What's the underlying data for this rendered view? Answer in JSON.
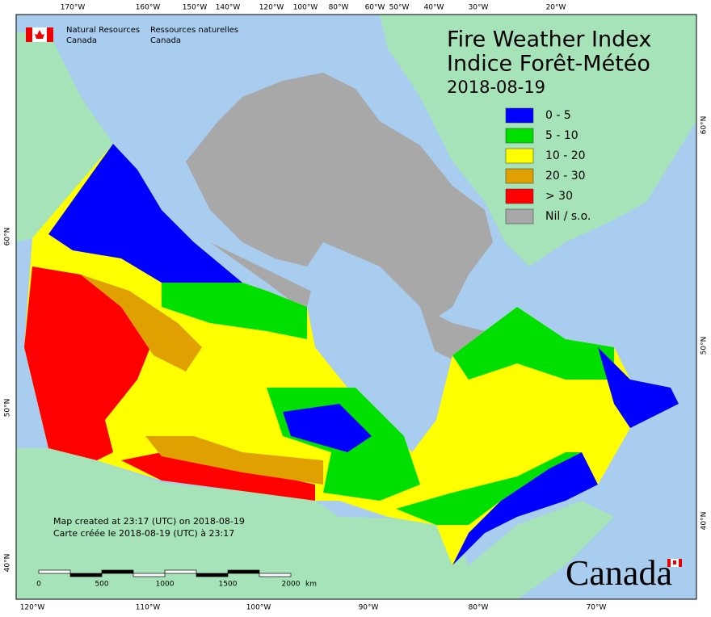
{
  "header": {
    "agency": {
      "english": [
        "Natural Resources",
        "Canada"
      ],
      "french": [
        "Ressources naturelles",
        "Canada"
      ]
    },
    "title": [
      "Fire Weather Index",
      "Indice Forêt-Météo"
    ],
    "date": "2018-08-19"
  },
  "legend": [
    {
      "label": "0 - 5",
      "color": "#0000ff"
    },
    {
      "label": "5 - 10",
      "color": "#00e000"
    },
    {
      "label": "10 - 20",
      "color": "#ffff00"
    },
    {
      "label": "20 - 30",
      "color": "#e0a000"
    },
    {
      "label": "> 30",
      "color": "#ff0000"
    },
    {
      "label": "Nil / s.o.",
      "color": "#a8a8a8"
    }
  ],
  "graticule": {
    "top": [
      "170°W",
      "160°W",
      "150°W",
      "140°W",
      "120°W",
      "100°W",
      "80°W",
      "60°W",
      "50°W",
      "40°W",
      "30°W",
      "20°W"
    ],
    "bottom": [
      "120°W",
      "110°W",
      "100°W",
      "90°W",
      "80°W",
      "70°W"
    ],
    "left": [
      "60°N",
      "50°N",
      "40°N"
    ],
    "right": [
      "60°N",
      "50°N",
      "40°N"
    ]
  },
  "footer": {
    "notes": [
      "Map created at 23:17 (UTC) on 2018-08-19",
      "Carte créée le 2018-08-19 (UTC) à 23:17"
    ],
    "scale": {
      "labels": [
        "0",
        "500",
        "1000",
        "1500",
        "2000"
      ],
      "unit": "km"
    },
    "wordmark": "Canada"
  }
}
